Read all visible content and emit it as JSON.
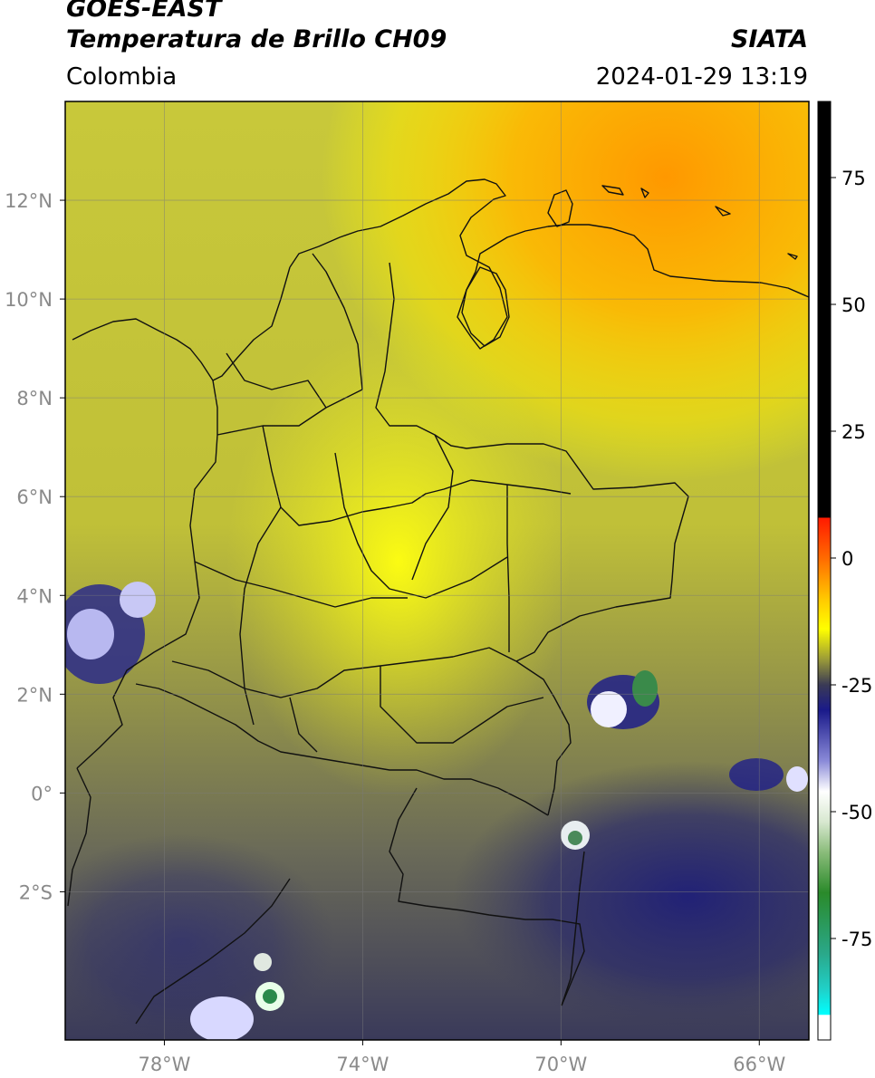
{
  "header": {
    "satellite": "GOES-EAST",
    "product": "Temperatura de Brillo CH09",
    "region": "Colombia",
    "agency": "SIATA",
    "timestamp": "2024-01-29 13:19"
  },
  "map": {
    "lon_range": [
      -80.0,
      -65.0
    ],
    "lat_range": [
      -5.0,
      14.0
    ],
    "x_ticks": [
      {
        "value": -78,
        "label": "78°W"
      },
      {
        "value": -74,
        "label": "74°W"
      },
      {
        "value": -70,
        "label": "70°W"
      },
      {
        "value": -66,
        "label": "66°W"
      }
    ],
    "y_ticks": [
      {
        "value": 12,
        "label": "12°N"
      },
      {
        "value": 10,
        "label": "10°N"
      },
      {
        "value": 8,
        "label": "8°N"
      },
      {
        "value": 6,
        "label": "6°N"
      },
      {
        "value": 4,
        "label": "4°N"
      },
      {
        "value": 2,
        "label": "2°N"
      },
      {
        "value": 0,
        "label": "0°"
      },
      {
        "value": -2,
        "label": "2°S"
      }
    ],
    "grid": true
  },
  "colorbar": {
    "units": "",
    "range": [
      -95,
      90
    ],
    "ticks": [
      {
        "value": 75,
        "label": "75"
      },
      {
        "value": 50,
        "label": "50"
      },
      {
        "value": 25,
        "label": "25"
      },
      {
        "value": 0,
        "label": "0"
      },
      {
        "value": -25,
        "label": "-25"
      },
      {
        "value": -50,
        "label": "-50"
      },
      {
        "value": -75,
        "label": "-75"
      }
    ],
    "stops": [
      {
        "value": 90,
        "color": "#000000"
      },
      {
        "value": 8,
        "color": "#000000"
      },
      {
        "value": 7.9,
        "color": "#ff1a00"
      },
      {
        "value": 0,
        "color": "#ff6a00"
      },
      {
        "value": -8,
        "color": "#ffc800"
      },
      {
        "value": -14,
        "color": "#ffff00"
      },
      {
        "value": -20,
        "color": "#9a9a38"
      },
      {
        "value": -25,
        "color": "#3a3a55"
      },
      {
        "value": -30,
        "color": "#1a1a8a"
      },
      {
        "value": -40,
        "color": "#8a8ad8"
      },
      {
        "value": -46,
        "color": "#ffffff"
      },
      {
        "value": -52,
        "color": "#d8e8d0"
      },
      {
        "value": -58,
        "color": "#8abc7a"
      },
      {
        "value": -66,
        "color": "#2a8a2a"
      },
      {
        "value": -78,
        "color": "#2aa88a"
      },
      {
        "value": -85,
        "color": "#20d0c8"
      },
      {
        "value": -90,
        "color": "#00ffff"
      },
      {
        "value": -90.1,
        "color": "#ffffff"
      },
      {
        "value": -95,
        "color": "#ffffff"
      }
    ]
  }
}
